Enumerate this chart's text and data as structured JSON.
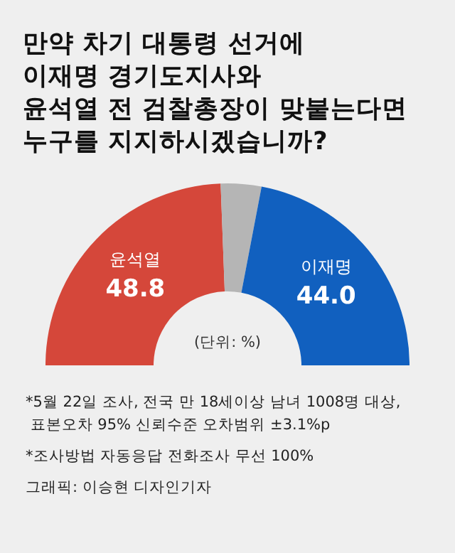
{
  "chart_data": {
    "type": "donut",
    "title": "만약 차기 대통령 선거에\n이재명 경기도지사와\n윤석열 전 검찰총장이 맞붙는다면\n누구를 지지하시겠습니까?",
    "categories": [
      "윤석열",
      null,
      "이재명"
    ],
    "values": [
      48.8,
      7.2,
      44.0
    ],
    "value_labels": [
      "48.8",
      null,
      "44.0"
    ],
    "colors": [
      "#d5473a",
      "#b5b5b5",
      "#1160bf"
    ],
    "annotations": [
      "(단위: %)",
      "*5월 22일 조사, 전국 만 18세이상 남녀 1008명 대상,\n 표본오차 95% 신뢰수준 오차범위 ±3.1%p",
      "*조사방법 자동응답 전화조사 무선 100%",
      "그래픽: 이승현 디자인기자"
    ]
  }
}
